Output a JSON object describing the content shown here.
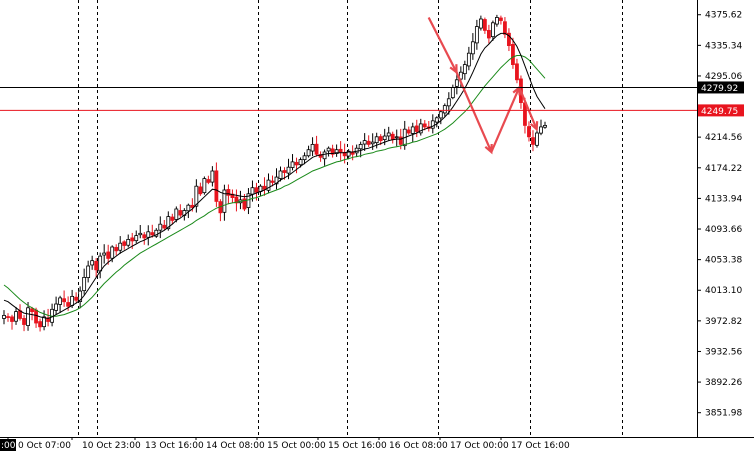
{
  "chart_data": {
    "type": "candlestick",
    "symbol_hidden": true,
    "colors": {
      "background": "#ffffff",
      "bull_candle": "#ffffff",
      "bull_outline": "#000000",
      "bear_candle": "#e8141e",
      "bear_outline": "#e8141e",
      "ma_fast": "#000000",
      "ma_slow": "#1a8a1a",
      "bid_line": "#e8141e",
      "ask_line": "#000000",
      "vline": "#000000",
      "forecast": "#e84a50"
    },
    "ylim": [
      3820,
      4395
    ],
    "y_ticks": [
      "4375.62",
      "4335.34",
      "4295.06",
      "4214.56",
      "4174.22",
      "4133.94",
      "4093.66",
      "4053.38",
      "4013.10",
      "3972.82",
      "3932.56",
      "3892.26",
      "3851.98"
    ],
    "x_ticks": [
      "0 Oct 07:00",
      "10 Oct 23:00",
      "13 Oct 16:00",
      "14 Oct 08:00",
      "15 Oct 00:00",
      "15 Oct 16:00",
      "16 Oct 08:00",
      "17 Oct 00:00",
      "17 Oct 16:00"
    ],
    "x_tick_first": ":00",
    "period_separators": 11,
    "price_levels": [
      {
        "name": "ask",
        "value": 4279.92,
        "label": "4279.92"
      },
      {
        "name": "bid",
        "value": 4249.75,
        "label": "4249.75"
      }
    ],
    "close_path": [
      3980,
      3978,
      3972,
      3985,
      3976,
      3968,
      3990,
      3985,
      3970,
      3965,
      3978,
      3972,
      3988,
      3995,
      4003,
      3998,
      3992,
      4005,
      4000,
      4012,
      4030,
      4045,
      4052,
      4040,
      4058,
      4062,
      4055,
      4070,
      4065,
      4075,
      4072,
      4080,
      4078,
      4085,
      4088,
      4082,
      4090,
      4086,
      4092,
      4100,
      4095,
      4110,
      4105,
      4120,
      4112,
      4118,
      4125,
      4122,
      4150,
      4140,
      4160,
      4155,
      4170,
      4130,
      4115,
      4145,
      4138,
      4135,
      4128,
      4132,
      4120,
      4140,
      4148,
      4142,
      4150,
      4146,
      4158,
      4155,
      4162,
      4170,
      4168,
      4175,
      4182,
      4178,
      4185,
      4190,
      4198,
      4205,
      4192,
      4188,
      4195,
      4200,
      4192,
      4198,
      4195,
      4190,
      4196,
      4192,
      4200,
      4205,
      4210,
      4205,
      4208,
      4215,
      4210,
      4216,
      4220,
      4212,
      4215,
      4205,
      4225,
      4220,
      4228,
      4222,
      4232,
      4228,
      4226,
      4236,
      4240,
      4248,
      4256,
      4265,
      4280,
      4290,
      4300,
      4310,
      4325,
      4340,
      4360,
      4370,
      4355,
      4345,
      4365,
      4372,
      4368,
      4350,
      4335,
      4310,
      4290,
      4260,
      4230,
      4215,
      4205,
      4220,
      4228,
      4230
    ],
    "ma_fast_path": [
      4000,
      3998,
      3994,
      3990,
      3986,
      3983,
      3982,
      3981,
      3980,
      3978,
      3977,
      3976,
      3978,
      3981,
      3984,
      3987,
      3990,
      3993,
      3996,
      4000,
      4006,
      4014,
      4022,
      4030,
      4038,
      4045,
      4050,
      4054,
      4058,
      4062,
      4065,
      4068,
      4071,
      4074,
      4077,
      4079,
      4082,
      4084,
      4086,
      4089,
      4092,
      4096,
      4100,
      4105,
      4108,
      4112,
      4116,
      4120,
      4126,
      4131,
      4136,
      4141,
      4146,
      4145,
      4142,
      4140,
      4140,
      4139,
      4138,
      4137,
      4136,
      4137,
      4139,
      4141,
      4143,
      4145,
      4148,
      4151,
      4154,
      4158,
      4161,
      4164,
      4168,
      4172,
      4176,
      4180,
      4184,
      4188,
      4190,
      4191,
      4192,
      4193,
      4193,
      4194,
      4194,
      4194,
      4195,
      4195,
      4196,
      4197,
      4199,
      4200,
      4202,
      4204,
      4206,
      4208,
      4210,
      4211,
      4212,
      4212,
      4214,
      4216,
      4218,
      4220,
      4223,
      4225,
      4227,
      4229,
      4232,
      4236,
      4241,
      4247,
      4254,
      4262,
      4270,
      4279,
      4289,
      4300,
      4312,
      4324,
      4332,
      4337,
      4343,
      4348,
      4351,
      4351,
      4348,
      4342,
      4334,
      4322,
      4308,
      4294,
      4280,
      4268,
      4260,
      4252
    ],
    "ma_slow_path": [
      4020,
      4016,
      4011,
      4006,
      4001,
      3997,
      3993,
      3990,
      3987,
      3984,
      3982,
      3980,
      3979,
      3979,
      3980,
      3981,
      3983,
      3985,
      3987,
      3990,
      3994,
      3999,
      4004,
      4010,
      4016,
      4022,
      4027,
      4032,
      4037,
      4041,
      4046,
      4050,
      4054,
      4058,
      4062,
      4065,
      4068,
      4071,
      4074,
      4077,
      4080,
      4083,
      4086,
      4089,
      4092,
      4095,
      4098,
      4101,
      4105,
      4108,
      4111,
      4115,
      4118,
      4121,
      4123,
      4125,
      4127,
      4128,
      4129,
      4130,
      4131,
      4132,
      4134,
      4135,
      4137,
      4139,
      4141,
      4143,
      4145,
      4147,
      4150,
      4152,
      4155,
      4158,
      4161,
      4164,
      4167,
      4170,
      4172,
      4174,
      4176,
      4178,
      4180,
      4182,
      4183,
      4185,
      4186,
      4188,
      4189,
      4190,
      4192,
      4193,
      4194,
      4196,
      4197,
      4198,
      4200,
      4201,
      4202,
      4203,
      4205,
      4206,
      4208,
      4209,
      4211,
      4213,
      4215,
      4217,
      4219,
      4222,
      4225,
      4229,
      4233,
      4238,
      4243,
      4248,
      4254,
      4261,
      4268,
      4275,
      4282,
      4288,
      4294,
      4300,
      4306,
      4311,
      4316,
      4320,
      4322,
      4322,
      4320,
      4316,
      4310,
      4304,
      4298,
      4292
    ],
    "forecast_path": [
      [
        0.615,
        4372
      ],
      [
        0.655,
        4300
      ],
      [
        0.705,
        4195
      ],
      [
        0.745,
        4280
      ],
      [
        0.77,
        4225
      ]
    ]
  }
}
